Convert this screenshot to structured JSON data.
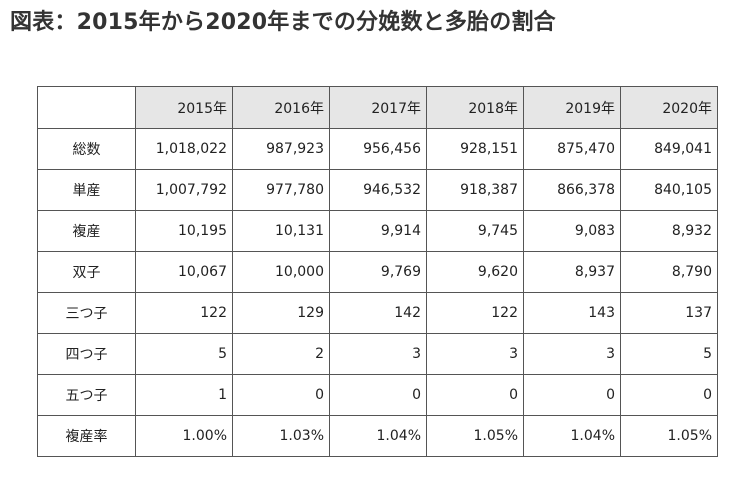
{
  "title": "図表：2015年から2020年までの分娩数と多胎の割合",
  "table": {
    "header": [
      "2015年",
      "2016年",
      "2017年",
      "2018年",
      "2019年",
      "2020年"
    ],
    "rows": [
      {
        "label": "総数",
        "values": [
          "1,018,022",
          "987,923",
          "956,456",
          "928,151",
          "875,470",
          "849,041"
        ]
      },
      {
        "label": "単産",
        "values": [
          "1,007,792",
          "977,780",
          "946,532",
          "918,387",
          "866,378",
          "840,105"
        ]
      },
      {
        "label": "複産",
        "values": [
          "10,195",
          "10,131",
          "9,914",
          "9,745",
          "9,083",
          "8,932"
        ]
      },
      {
        "label": "双子",
        "values": [
          "10,067",
          "10,000",
          "9,769",
          "9,620",
          "8,937",
          "8,790"
        ]
      },
      {
        "label": "三つ子",
        "values": [
          "122",
          "129",
          "142",
          "122",
          "143",
          "137"
        ]
      },
      {
        "label": "四つ子",
        "values": [
          "5",
          "2",
          "3",
          "3",
          "3",
          "5"
        ]
      },
      {
        "label": "五つ子",
        "values": [
          "1",
          "0",
          "0",
          "0",
          "0",
          "0"
        ]
      },
      {
        "label": "複産率",
        "values": [
          "1.00%",
          "1.03%",
          "1.04%",
          "1.05%",
          "1.04%",
          "1.05%"
        ]
      }
    ]
  }
}
